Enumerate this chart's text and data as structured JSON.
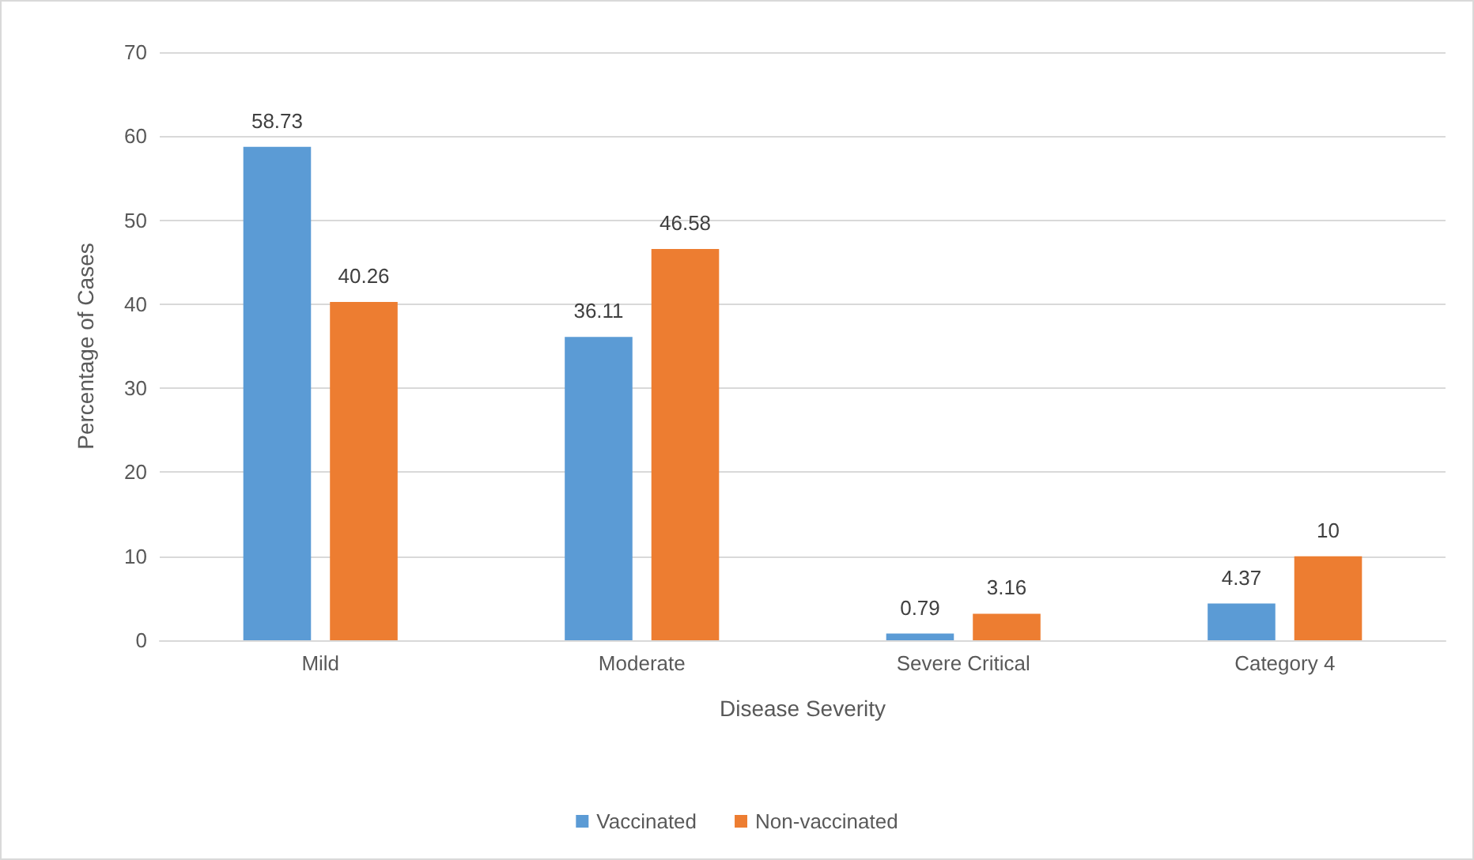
{
  "chart_data": {
    "type": "bar",
    "xlabel": "Disease Severity",
    "ylabel": "Percentage of Cases",
    "categories": [
      "Mild",
      "Moderate",
      "Severe Critical",
      "Category 4"
    ],
    "series": [
      {
        "name": "Vaccinated",
        "color": "#5b9bd5",
        "values": [
          58.73,
          36.11,
          0.79,
          4.37
        ]
      },
      {
        "name": "Non-vaccinated",
        "color": "#ed7d31",
        "values": [
          40.26,
          46.58,
          3.16,
          10
        ]
      }
    ],
    "ylim": [
      0,
      70
    ],
    "yticks": [
      0,
      10,
      20,
      30,
      40,
      50,
      60,
      70
    ],
    "grid": "y",
    "legend": "bottom",
    "data_labels": true
  }
}
